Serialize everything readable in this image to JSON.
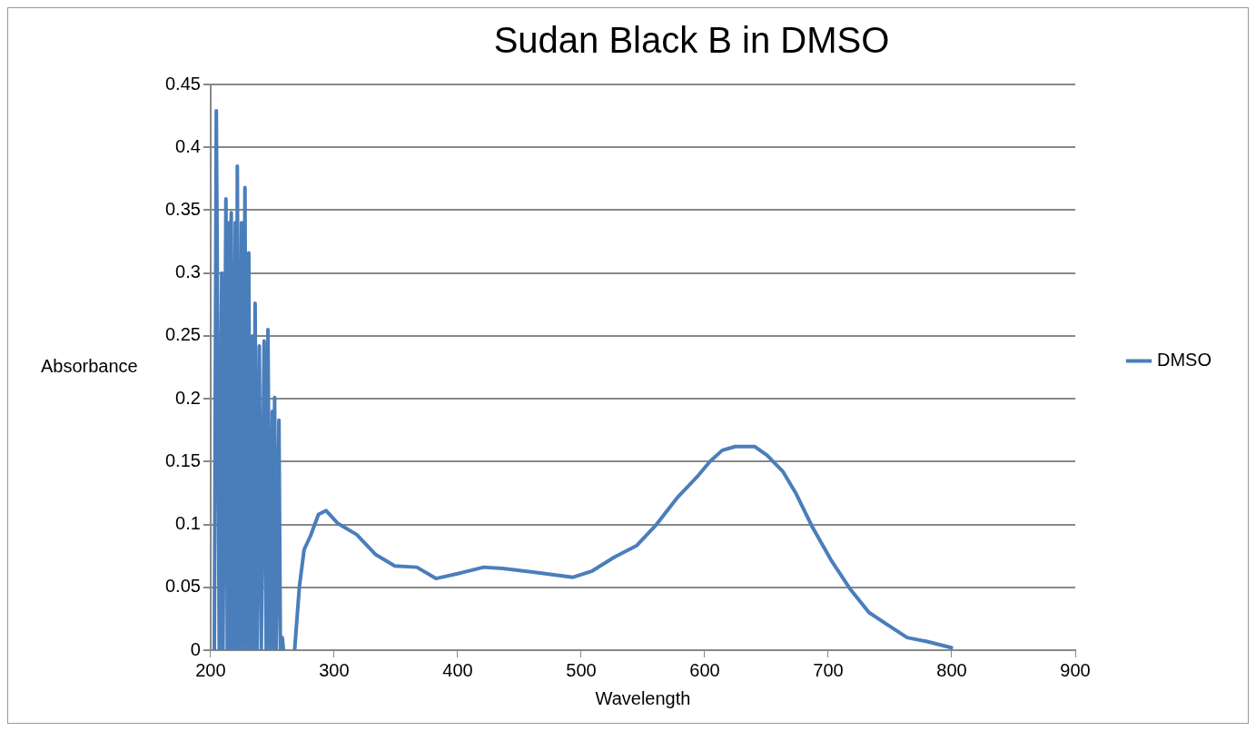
{
  "chart_data": {
    "type": "line",
    "title": "Sudan Black B in DMSO",
    "xlabel": "Wavelength",
    "ylabel": "Absorbance",
    "xlim": [
      200,
      900
    ],
    "xticks": [
      200,
      300,
      400,
      500,
      600,
      700,
      800,
      900
    ],
    "ylim": [
      0,
      0.45
    ],
    "yticks": [
      0,
      0.05,
      0.1,
      0.15,
      0.2,
      0.25,
      0.3,
      0.35,
      0.4,
      0.45
    ],
    "grid": "y",
    "legend": "right",
    "marker": "none",
    "line_style": "solid",
    "series": [
      {
        "name": "DMSO",
        "color": "#4a7ebb",
        "x": [
          203,
          204.6,
          206,
          207,
          209,
          210,
          212.4,
          213.5,
          215,
          216,
          216.7,
          218,
          220,
          221,
          221.6,
          223,
          225,
          226,
          227.8,
          229,
          230.9,
          232,
          234,
          235,
          236,
          237.5,
          239.4,
          241,
          243.3,
          245,
          246.4,
          248,
          250,
          251,
          251.8,
          253,
          255.3,
          256.5,
          258,
          259,
          263,
          268,
          271.9,
          275.7,
          280.9,
          287.3,
          293.5,
          302.8,
          318.2,
          333.7,
          349.1,
          366.9,
          382.4,
          400.7,
          421,
          436.5,
          462.5,
          493.4,
          508.9,
          526.9,
          544.7,
          560.1,
          578.4,
          593.9,
          604.2,
          614.2,
          624.8,
          640.3,
          650.5,
          663.4,
          673.7,
          686.6,
          702.1,
          717.5,
          733,
          748.4,
          763.9,
          779.4,
          799.7
        ],
        "values": [
          0,
          0.429,
          0.2,
          0,
          0.3,
          0,
          0.359,
          0,
          0.34,
          0,
          0.348,
          0,
          0.34,
          0,
          0.385,
          0,
          0.34,
          0,
          0.368,
          0,
          0.316,
          0,
          0.25,
          0,
          0.276,
          0,
          0.242,
          0,
          0.246,
          0,
          0.255,
          0,
          0.19,
          0,
          0.201,
          0,
          0.183,
          0,
          0.01,
          0,
          null,
          0,
          0.051,
          0.08,
          0.091,
          0.108,
          0.111,
          0.101,
          0.092,
          0.076,
          0.067,
          0.066,
          0.057,
          0.061,
          0.066,
          0.065,
          0.062,
          0.058,
          0.063,
          0.074,
          0.083,
          0.099,
          0.122,
          0.138,
          0.15,
          0.159,
          0.162,
          0.162,
          0.155,
          0.142,
          0.125,
          0.099,
          0.072,
          0.049,
          0.03,
          0.02,
          0.01,
          0.007,
          0.002
        ]
      }
    ]
  }
}
